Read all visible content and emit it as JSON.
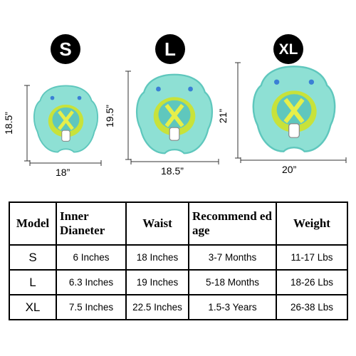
{
  "sizes": [
    {
      "badge": "S",
      "height": "18.5”",
      "width": "18”"
    },
    {
      "badge": "L",
      "height": "19.5”",
      "width": "18.5”"
    },
    {
      "badge": "XL",
      "height": "21”",
      "width": "20”"
    }
  ],
  "colors": {
    "float_body": "#8ee0d4",
    "float_shade": "#5fc7bd",
    "seat_green": "#c8e23a",
    "seat_yellow": "#e6ef4a",
    "badge": "#000000"
  },
  "table": {
    "headers": [
      "Model",
      "Inner Dianeter",
      "Waist",
      "Recommend ed age",
      "Weight"
    ],
    "rows": [
      [
        "S",
        "6 Inches",
        "18 Inches",
        "3-7 Months",
        "11-17 Lbs"
      ],
      [
        "L",
        "6.3 Inches",
        "19 Inches",
        "5-18 Months",
        "18-26 Lbs"
      ],
      [
        "XL",
        "7.5 Inches",
        "22.5 Inches",
        "1.5-3 Years",
        "26-38 Lbs"
      ]
    ]
  }
}
